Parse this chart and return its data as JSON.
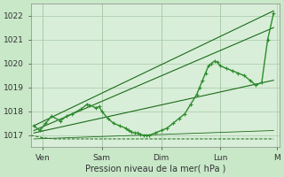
{
  "title": "",
  "xlabel": "Pression niveau de la mer( hPa )",
  "ylabel": "",
  "background_color": "#c8e8c8",
  "plot_bg_color": "#d8eed8",
  "grid_color": "#a8c8a8",
  "ylim": [
    1016.5,
    1022.5
  ],
  "xlim": [
    0,
    4.2
  ],
  "yticks": [
    1017,
    1018,
    1019,
    1020,
    1021,
    1022
  ],
  "xtick_labels": [
    "Ven",
    "Sam",
    "Dim",
    "Lun",
    "M"
  ],
  "xtick_positions": [
    0.2,
    1.2,
    2.2,
    3.2,
    4.15
  ],
  "line_color": "#1a6b1a",
  "marker_color": "#1a6b1a",
  "line_color2": "#2d8b2d",
  "series": {
    "flat_lower": {
      "x": [
        0.0,
        0.2,
        0.4,
        0.6,
        0.8,
        1.0,
        1.2,
        1.4,
        1.6,
        1.8,
        2.0,
        2.2,
        2.4,
        2.6,
        2.8,
        3.0,
        3.2,
        3.4,
        3.6,
        3.8,
        4.0,
        4.1
      ],
      "y": [
        1017.0,
        1016.9,
        1016.85,
        1016.85,
        1016.85,
        1016.85,
        1016.85,
        1016.85,
        1016.85,
        1016.85,
        1016.85,
        1016.85,
        1016.85,
        1016.85,
        1016.85,
        1016.85,
        1016.85,
        1016.85,
        1016.85,
        1016.85,
        1016.85,
        1016.85
      ]
    },
    "main_wavy": {
      "x": [
        0.05,
        0.15,
        0.25,
        0.35,
        0.5,
        0.6,
        0.7,
        0.85,
        0.95,
        1.0,
        1.1,
        1.15,
        1.2,
        1.3,
        1.4,
        1.5,
        1.6,
        1.65,
        1.7,
        1.75,
        1.8,
        1.85,
        1.9,
        1.95,
        2.0,
        2.1,
        2.2,
        2.3,
        2.4,
        2.5,
        2.6,
        2.7,
        2.8,
        2.85,
        2.9,
        2.95,
        3.0,
        3.05,
        3.1,
        3.15,
        3.2,
        3.3,
        3.4,
        3.5,
        3.6,
        3.7,
        3.8,
        3.9,
        4.0,
        4.1
      ],
      "y": [
        1017.4,
        1017.2,
        1017.5,
        1017.8,
        1017.6,
        1017.8,
        1017.9,
        1018.1,
        1018.3,
        1018.25,
        1018.15,
        1018.2,
        1018.0,
        1017.7,
        1017.5,
        1017.4,
        1017.3,
        1017.2,
        1017.15,
        1017.1,
        1017.1,
        1017.05,
        1017.0,
        1017.0,
        1017.0,
        1017.1,
        1017.2,
        1017.3,
        1017.5,
        1017.7,
        1017.9,
        1018.3,
        1018.7,
        1019.0,
        1019.3,
        1019.6,
        1019.9,
        1020.0,
        1020.1,
        1020.05,
        1019.9,
        1019.8,
        1019.7,
        1019.6,
        1019.5,
        1019.3,
        1019.1,
        1019.2,
        1021.0,
        1022.1
      ]
    },
    "linear_upper": {
      "x": [
        0.05,
        4.1
      ],
      "y": [
        1017.4,
        1022.2
      ]
    },
    "linear_mid_upper": {
      "x": [
        0.05,
        4.1
      ],
      "y": [
        1017.2,
        1021.5
      ]
    },
    "linear_mid": {
      "x": [
        0.05,
        4.1
      ],
      "y": [
        1017.1,
        1019.3
      ]
    },
    "linear_lower": {
      "x": [
        0.05,
        4.1
      ],
      "y": [
        1016.85,
        1017.2
      ]
    }
  }
}
